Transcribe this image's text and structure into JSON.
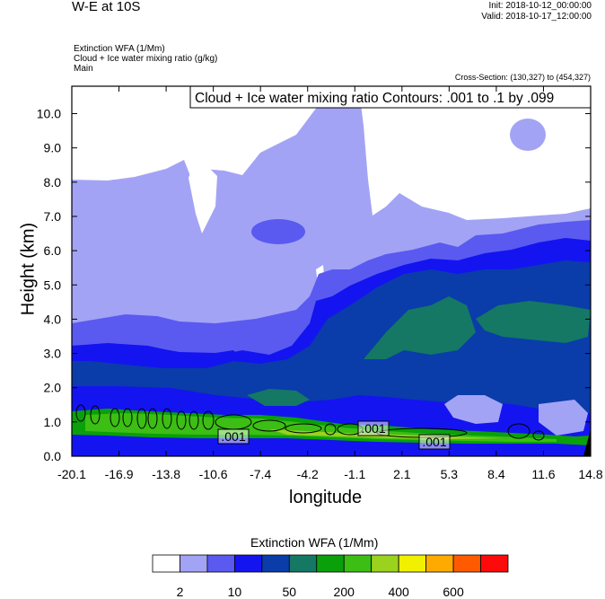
{
  "header": {
    "title": "W-E at 10S",
    "init": "Init: 2018-10-12_00:00:00",
    "valid": "Valid: 2018-10-17_12:00:00",
    "field1": "Extinction WFA   (1/Mm)",
    "field2": "Cloud + Ice water mixing ratio   (g/kg)",
    "field3": "Main",
    "cross_section": "Cross-Section: (130,327) to (454,327)"
  },
  "chart_data": {
    "type": "contour",
    "title": "W-E at 10S",
    "xlabel": "longitude",
    "ylabel": "Height (km)",
    "x_ticks": [
      "-20.1",
      "-16.9",
      "-13.8",
      "-10.6",
      "-7.4",
      "-4.2",
      "-1.1",
      "2.1",
      "5.3",
      "8.4",
      "11.6",
      "14.8"
    ],
    "y_ticks": [
      "0.0",
      "1.0",
      "2.0",
      "3.0",
      "4.0",
      "5.0",
      "6.0",
      "7.0",
      "8.0",
      "9.0",
      "10.0"
    ],
    "xlim": [
      -20.1,
      14.8
    ],
    "ylim": [
      0.0,
      10.8
    ],
    "contour_info": "Cloud + Ice water mixing ratio Contours: .001 to .1 by .099",
    "contour_labels": [
      ".001",
      ".001",
      ".001"
    ],
    "colorbar": {
      "title": "Extinction WFA  (1/Mm)",
      "tick_labels": [
        "2",
        "10",
        "50",
        "200",
        "400",
        "600"
      ],
      "colors": [
        "#ffffff",
        "#a3a3f5",
        "#5a5af0",
        "#1414f0",
        "#0a3caa",
        "#147864",
        "#0aa00a",
        "#3cbe14",
        "#9bd21e",
        "#f0f000",
        "#ffaa00",
        "#ff5a00",
        "#ff0a0a"
      ]
    }
  }
}
